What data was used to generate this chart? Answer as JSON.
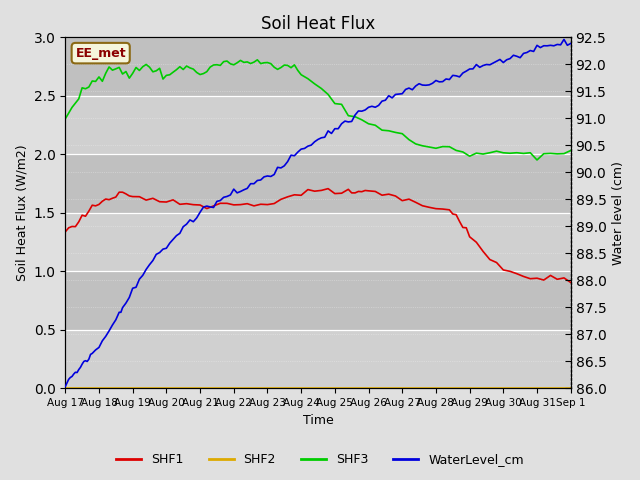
{
  "title": "Soil Heat Flux",
  "ylabel_left": "Soil Heat Flux (W/m2)",
  "ylabel_right": "Water level (cm)",
  "xlabel": "Time",
  "ylim_left": [
    0.0,
    3.0
  ],
  "ylim_right": [
    86.0,
    92.5
  ],
  "annotation": "EE_met",
  "fig_bg_color": "#e0e0e0",
  "plot_bg_color": "#c8c8c8",
  "shf1_color": "#dd0000",
  "shf2_color": "#ddaa00",
  "shf3_color": "#00cc00",
  "water_color": "#0000dd",
  "legend_labels": [
    "SHF1",
    "SHF2",
    "SHF3",
    "WaterLevel_cm"
  ],
  "tick_labels": [
    "Aug 17",
    "Aug 18",
    "Aug 19",
    "Aug 20",
    "Aug 21",
    "Aug 22",
    "Aug 23",
    "Aug 24",
    "Aug 25",
    "Aug 26",
    "Aug 27",
    "Aug 28",
    "Aug 29",
    "Aug 30",
    "Aug 31",
    "Sep 1"
  ],
  "shf1_x": [
    0,
    0.1,
    0.2,
    0.3,
    0.4,
    0.5,
    0.6,
    0.7,
    0.8,
    0.9,
    1.0,
    1.1,
    1.2,
    1.3,
    1.4,
    1.5,
    1.6,
    1.7,
    1.8,
    1.9,
    2.0,
    2.2,
    2.4,
    2.6,
    2.8,
    3.0,
    3.2,
    3.4,
    3.6,
    3.8,
    4.0,
    4.2,
    4.4,
    4.6,
    4.8,
    5.0,
    5.2,
    5.4,
    5.6,
    5.8,
    6.0,
    6.2,
    6.4,
    6.6,
    6.8,
    7.0,
    7.2,
    7.4,
    7.6,
    7.8,
    8.0,
    8.2,
    8.4,
    8.5,
    8.6,
    8.7,
    8.8,
    8.9,
    9.0,
    9.2,
    9.4,
    9.6,
    9.8,
    10.0,
    10.2,
    10.4,
    10.6,
    10.8,
    11.0,
    11.2,
    11.4,
    11.5,
    11.6,
    11.7,
    11.8,
    11.9,
    12.0,
    12.2,
    12.4,
    12.6,
    12.8,
    13.0,
    13.2,
    13.4,
    13.6,
    13.8,
    14.0,
    14.2,
    14.4,
    14.6,
    14.8,
    15.0
  ],
  "shf1_y": [
    1.35,
    1.36,
    1.38,
    1.4,
    1.43,
    1.46,
    1.5,
    1.52,
    1.55,
    1.57,
    1.58,
    1.6,
    1.6,
    1.62,
    1.63,
    1.64,
    1.65,
    1.65,
    1.65,
    1.64,
    1.63,
    1.62,
    1.62,
    1.61,
    1.61,
    1.6,
    1.6,
    1.59,
    1.58,
    1.58,
    1.57,
    1.57,
    1.58,
    1.59,
    1.57,
    1.57,
    1.57,
    1.57,
    1.57,
    1.57,
    1.58,
    1.6,
    1.62,
    1.63,
    1.65,
    1.65,
    1.67,
    1.68,
    1.68,
    1.68,
    1.68,
    1.68,
    1.68,
    1.68,
    1.67,
    1.67,
    1.67,
    1.67,
    1.67,
    1.67,
    1.66,
    1.65,
    1.64,
    1.62,
    1.6,
    1.58,
    1.56,
    1.55,
    1.55,
    1.53,
    1.52,
    1.5,
    1.47,
    1.44,
    1.4,
    1.36,
    1.3,
    1.25,
    1.18,
    1.12,
    1.06,
    1.02,
    0.98,
    0.97,
    0.96,
    0.95,
    0.95,
    0.94,
    0.94,
    0.93,
    0.93,
    0.92
  ],
  "shf3_x": [
    0,
    0.2,
    0.4,
    0.5,
    0.6,
    0.7,
    0.8,
    0.9,
    1.0,
    1.1,
    1.2,
    1.3,
    1.4,
    1.5,
    1.6,
    1.7,
    1.8,
    1.9,
    2.0,
    2.1,
    2.2,
    2.3,
    2.4,
    2.5,
    2.6,
    2.7,
    2.8,
    2.9,
    3.0,
    3.1,
    3.2,
    3.3,
    3.4,
    3.5,
    3.6,
    3.7,
    3.8,
    3.9,
    4.0,
    4.1,
    4.2,
    4.3,
    4.4,
    4.5,
    4.6,
    4.7,
    4.8,
    4.9,
    5.0,
    5.1,
    5.2,
    5.3,
    5.4,
    5.5,
    5.6,
    5.7,
    5.8,
    5.9,
    6.0,
    6.1,
    6.2,
    6.3,
    6.4,
    6.5,
    6.6,
    6.7,
    6.8,
    6.9,
    7.0,
    7.2,
    7.4,
    7.6,
    7.8,
    8.0,
    8.2,
    8.4,
    8.6,
    8.8,
    9.0,
    9.2,
    9.4,
    9.6,
    9.8,
    10.0,
    10.2,
    10.4,
    10.6,
    10.8,
    11.0,
    11.2,
    11.4,
    11.6,
    11.8,
    12.0,
    12.2,
    12.4,
    12.6,
    12.8,
    13.0,
    13.2,
    13.4,
    13.6,
    13.8,
    14.0,
    14.2,
    14.4,
    14.6,
    14.8,
    15.0
  ],
  "shf3_y": [
    2.3,
    2.38,
    2.48,
    2.55,
    2.58,
    2.6,
    2.62,
    2.63,
    2.65,
    2.66,
    2.68,
    2.7,
    2.72,
    2.73,
    2.74,
    2.72,
    2.7,
    2.68,
    2.7,
    2.72,
    2.73,
    2.74,
    2.75,
    2.74,
    2.73,
    2.72,
    2.7,
    2.68,
    2.68,
    2.69,
    2.7,
    2.71,
    2.72,
    2.73,
    2.74,
    2.73,
    2.72,
    2.71,
    2.7,
    2.71,
    2.72,
    2.74,
    2.75,
    2.76,
    2.77,
    2.76,
    2.77,
    2.78,
    2.78,
    2.78,
    2.78,
    2.78,
    2.78,
    2.78,
    2.78,
    2.78,
    2.78,
    2.78,
    2.78,
    2.77,
    2.77,
    2.76,
    2.76,
    2.76,
    2.75,
    2.75,
    2.74,
    2.72,
    2.68,
    2.65,
    2.6,
    2.55,
    2.5,
    2.45,
    2.4,
    2.35,
    2.32,
    2.3,
    2.28,
    2.25,
    2.22,
    2.2,
    2.18,
    2.15,
    2.12,
    2.1,
    2.08,
    2.06,
    2.05,
    2.04,
    2.04,
    2.04,
    2.03,
    2.03,
    2.02,
    2.02,
    2.02,
    2.02,
    2.01,
    2.01,
    2.01,
    2.01,
    2.01,
    2.01,
    2.01,
    2.01,
    2.01,
    2.01,
    2.02
  ],
  "water_x": [
    0,
    0.1,
    0.15,
    0.2,
    0.25,
    0.3,
    0.35,
    0.4,
    0.45,
    0.5,
    0.55,
    0.6,
    0.65,
    0.7,
    0.75,
    0.8,
    0.9,
    1.0,
    1.1,
    1.2,
    1.3,
    1.4,
    1.5,
    1.6,
    1.65,
    1.7,
    1.8,
    1.9,
    2.0,
    2.1,
    2.2,
    2.3,
    2.4,
    2.5,
    2.6,
    2.7,
    2.8,
    2.9,
    3.0,
    3.1,
    3.2,
    3.3,
    3.4,
    3.5,
    3.6,
    3.7,
    3.8,
    3.9,
    4.0,
    4.1,
    4.2,
    4.3,
    4.4,
    4.5,
    4.6,
    4.7,
    4.8,
    4.9,
    5.0,
    5.1,
    5.2,
    5.3,
    5.4,
    5.5,
    5.6,
    5.7,
    5.8,
    5.9,
    6.0,
    6.1,
    6.2,
    6.3,
    6.4,
    6.5,
    6.6,
    6.7,
    6.8,
    6.9,
    7.0,
    7.1,
    7.2,
    7.3,
    7.4,
    7.5,
    7.6,
    7.7,
    7.8,
    7.9,
    8.0,
    8.1,
    8.2,
    8.3,
    8.4,
    8.5,
    8.6,
    8.7,
    8.8,
    8.9,
    9.0,
    9.1,
    9.2,
    9.3,
    9.4,
    9.5,
    9.6,
    9.7,
    9.8,
    9.9,
    10.0,
    10.1,
    10.2,
    10.3,
    10.4,
    10.5,
    10.6,
    10.7,
    10.8,
    10.9,
    11.0,
    11.1,
    11.2,
    11.3,
    11.4,
    11.5,
    11.6,
    11.7,
    11.8,
    11.9,
    12.0,
    12.1,
    12.2,
    12.3,
    12.4,
    12.5,
    12.6,
    12.7,
    12.8,
    12.9,
    13.0,
    13.1,
    13.2,
    13.3,
    13.4,
    13.5,
    13.6,
    13.7,
    13.8,
    13.9,
    14.0,
    14.1,
    14.2,
    14.3,
    14.4,
    14.5,
    14.6,
    14.7,
    14.8,
    14.9,
    15.0
  ],
  "water_y": [
    86.05,
    86.1,
    86.18,
    86.22,
    86.27,
    86.3,
    86.32,
    86.35,
    86.38,
    86.43,
    86.48,
    86.52,
    86.54,
    86.56,
    86.58,
    86.62,
    86.7,
    86.78,
    86.88,
    87.0,
    87.08,
    87.18,
    87.28,
    87.38,
    87.45,
    87.52,
    87.62,
    87.72,
    87.85,
    87.92,
    88.0,
    88.1,
    88.2,
    88.28,
    88.38,
    88.45,
    88.52,
    88.56,
    88.6,
    88.68,
    88.75,
    88.82,
    88.9,
    88.98,
    89.05,
    89.1,
    89.15,
    89.2,
    89.25,
    89.3,
    89.35,
    89.38,
    89.4,
    89.44,
    89.48,
    89.52,
    89.55,
    89.58,
    89.6,
    89.62,
    89.65,
    89.68,
    89.72,
    89.76,
    89.8,
    89.83,
    89.85,
    89.88,
    89.92,
    89.96,
    90.0,
    90.05,
    90.1,
    90.16,
    90.22,
    90.28,
    90.35,
    90.4,
    90.45,
    90.48,
    90.52,
    90.55,
    90.58,
    90.62,
    90.66,
    90.7,
    90.73,
    90.76,
    90.8,
    90.84,
    90.88,
    90.92,
    90.96,
    91.0,
    91.04,
    91.08,
    91.12,
    91.15,
    91.18,
    91.2,
    91.23,
    91.26,
    91.3,
    91.34,
    91.38,
    91.4,
    91.42,
    91.44,
    91.46,
    91.5,
    91.54,
    91.56,
    91.58,
    91.6,
    91.62,
    91.62,
    91.64,
    91.65,
    91.68,
    91.7,
    91.72,
    91.74,
    91.76,
    91.78,
    91.8,
    91.82,
    91.85,
    91.88,
    91.9,
    91.92,
    91.94,
    91.96,
    91.98,
    92.0,
    92.0,
    92.02,
    92.04,
    92.05,
    92.08,
    92.1,
    92.12,
    92.14,
    92.16,
    92.18,
    92.2,
    92.22,
    92.25,
    92.27,
    92.3,
    92.32,
    92.35,
    92.37,
    92.38,
    92.38,
    92.38,
    92.39,
    92.4,
    92.41,
    92.42
  ]
}
